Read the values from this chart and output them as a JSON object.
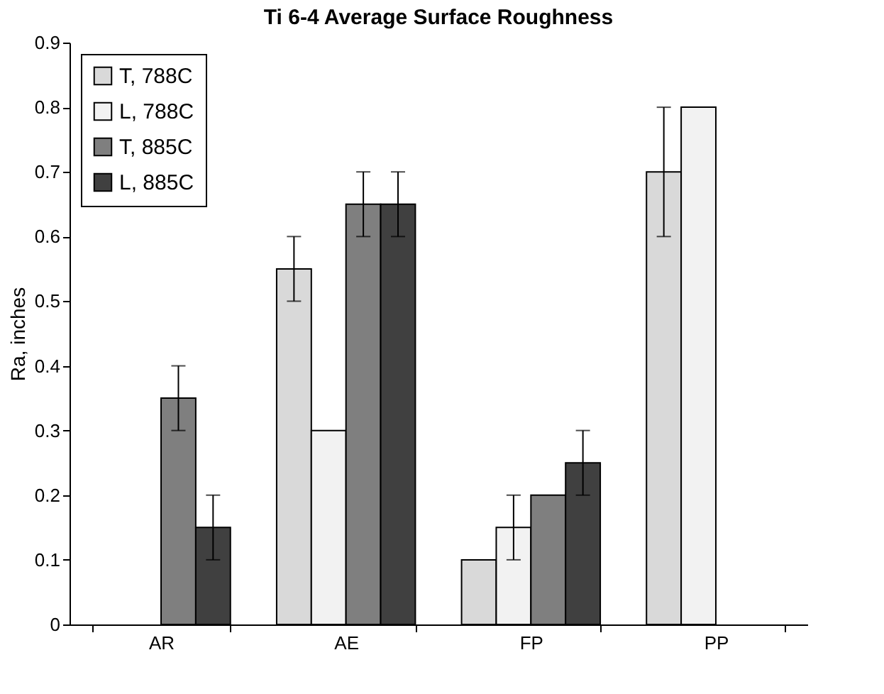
{
  "chart_data": {
    "type": "bar",
    "title": "Ti 6-4 Average Surface Roughness",
    "ylabel": "Ra, inches",
    "categories": [
      "AR",
      "AE",
      "FP",
      "PP"
    ],
    "series": [
      {
        "name": "T, 788C",
        "color": "#d9d9d9",
        "values": [
          null,
          0.55,
          0.1,
          0.7
        ],
        "errors": [
          null,
          0.05,
          null,
          0.1
        ]
      },
      {
        "name": "L, 788C",
        "color": "#f2f2f2",
        "values": [
          null,
          0.3,
          0.15,
          0.8
        ],
        "errors": [
          null,
          null,
          0.05,
          null
        ]
      },
      {
        "name": "T, 885C",
        "color": "#7f7f7f",
        "values": [
          0.35,
          0.65,
          0.2,
          null
        ],
        "errors": [
          0.05,
          0.05,
          null,
          null
        ]
      },
      {
        "name": "L, 885C",
        "color": "#404040",
        "values": [
          0.15,
          0.65,
          0.25,
          null
        ],
        "errors": [
          0.05,
          0.05,
          0.05,
          null
        ]
      }
    ],
    "ylim": [
      0,
      0.9
    ],
    "yticks": [
      0,
      0.1,
      0.2,
      0.3,
      0.4,
      0.5,
      0.6,
      0.7,
      0.8,
      0.9
    ],
    "grid": false,
    "legend": "top left"
  }
}
